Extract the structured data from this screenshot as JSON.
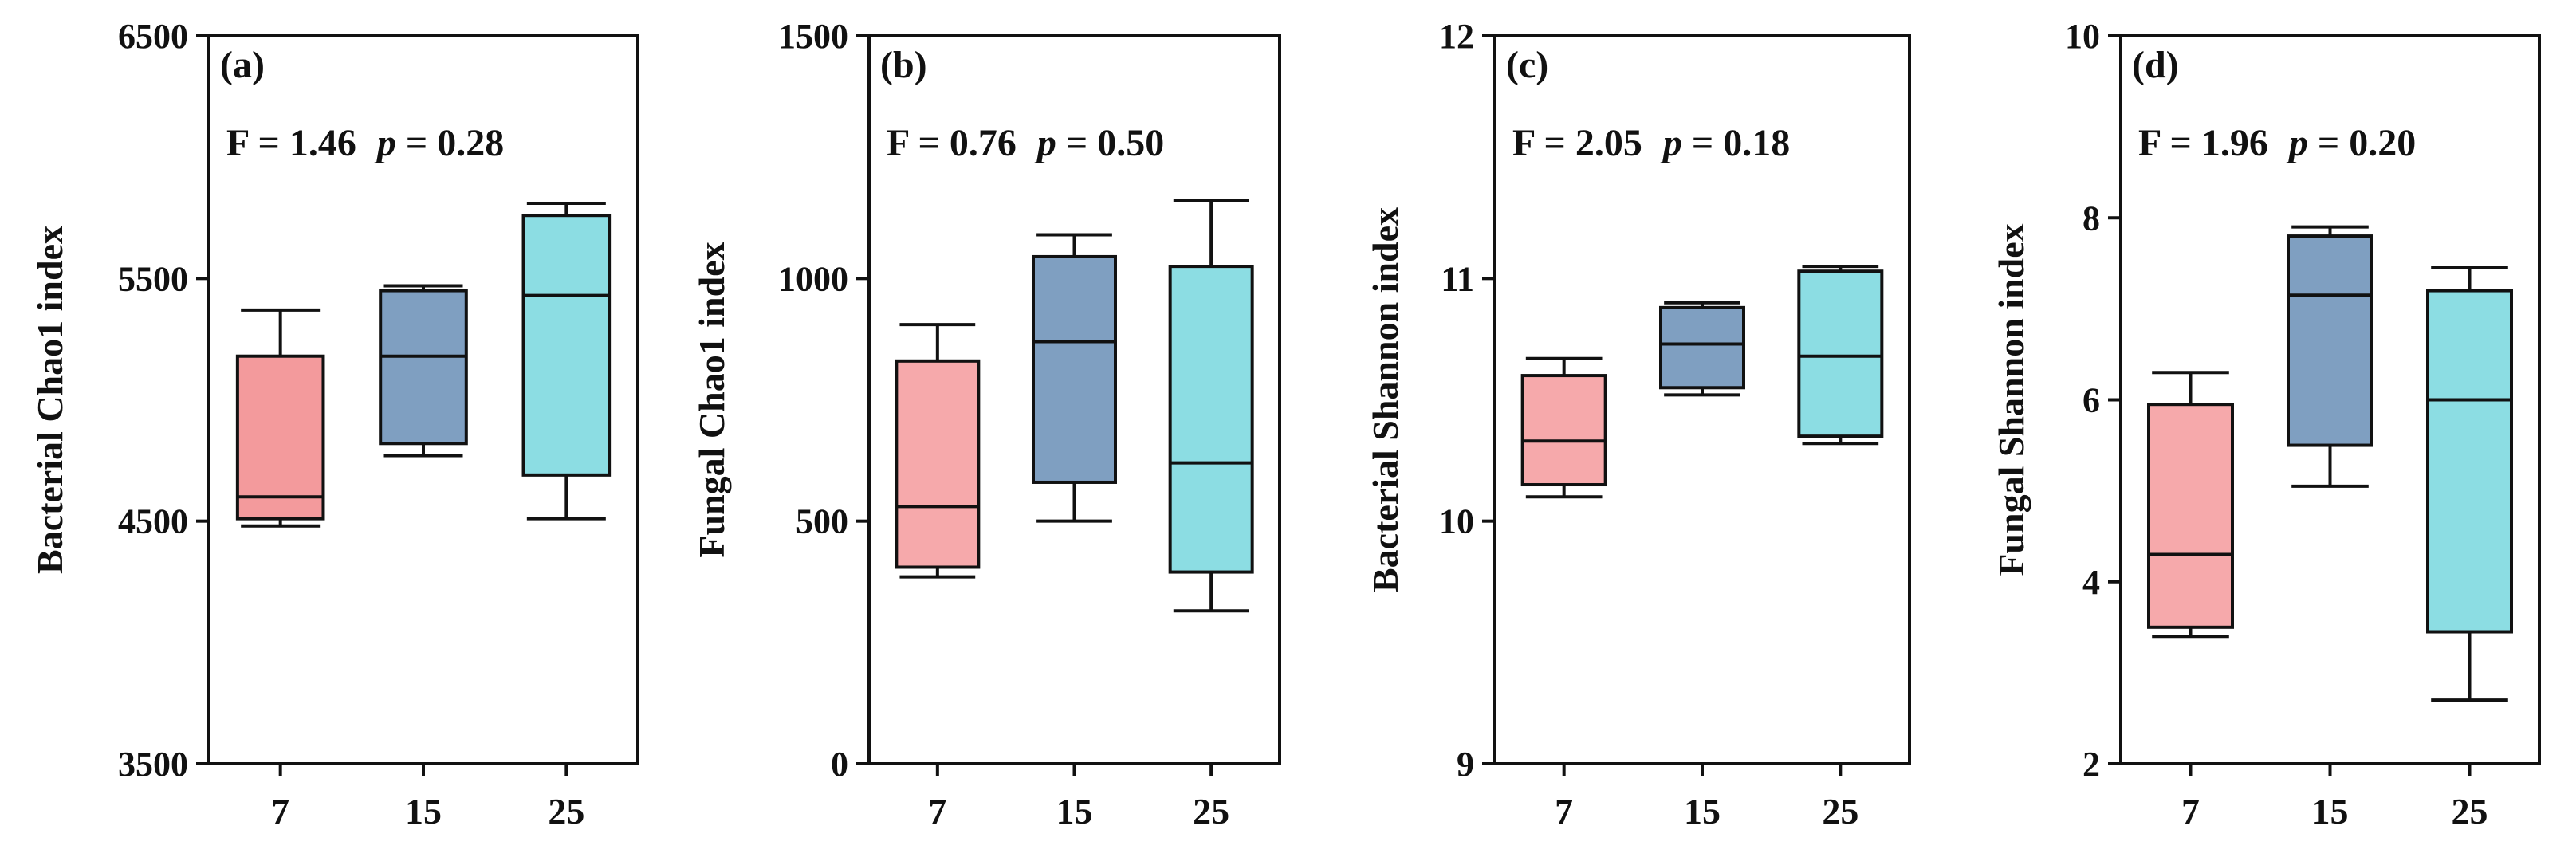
{
  "chart_data": [
    {
      "type": "box",
      "panel_label": "(a)",
      "ylabel": "Bacterial Chao1 index",
      "ylim": [
        3500,
        6500
      ],
      "yticks": [
        3500,
        4500,
        5500,
        6500
      ],
      "categories": [
        "7",
        "15",
        "25"
      ],
      "stat_f": "F = 1.46",
      "stat_p_symbol": "p",
      "stat_p_value": "= 0.28",
      "boxes": [
        {
          "min": 4480,
          "q1": 4510,
          "median": 4600,
          "q3": 5180,
          "max": 5370
        },
        {
          "min": 4770,
          "q1": 4820,
          "median": 5180,
          "q3": 5450,
          "max": 5470
        },
        {
          "min": 4510,
          "q1": 4690,
          "median": 5430,
          "q3": 5760,
          "max": 5810
        }
      ]
    },
    {
      "type": "box",
      "panel_label": "(b)",
      "ylabel": "Fungal Chao1 index",
      "ylim": [
        0,
        1500
      ],
      "yticks": [
        0,
        500,
        1000,
        1500
      ],
      "categories": [
        "7",
        "15",
        "25"
      ],
      "stat_f": "F = 0.76",
      "stat_p_symbol": "p",
      "stat_p_value": "= 0.50",
      "boxes": [
        {
          "min": 385,
          "q1": 405,
          "median": 530,
          "q3": 830,
          "max": 905
        },
        {
          "min": 500,
          "q1": 580,
          "median": 870,
          "q3": 1045,
          "max": 1090
        },
        {
          "min": 315,
          "q1": 395,
          "median": 620,
          "q3": 1025,
          "max": 1160
        }
      ]
    },
    {
      "type": "box",
      "panel_label": "(c)",
      "ylabel": "Bacterial Shannon index",
      "ylim": [
        9,
        12
      ],
      "yticks": [
        9,
        10,
        11,
        12
      ],
      "categories": [
        "7",
        "15",
        "25"
      ],
      "stat_f": "F = 2.05",
      "stat_p_symbol": "p",
      "stat_p_value": "= 0.18",
      "boxes": [
        {
          "min": 10.1,
          "q1": 10.15,
          "median": 10.33,
          "q3": 10.6,
          "max": 10.67
        },
        {
          "min": 10.52,
          "q1": 10.55,
          "median": 10.73,
          "q3": 10.88,
          "max": 10.9
        },
        {
          "min": 10.32,
          "q1": 10.35,
          "median": 10.68,
          "q3": 11.03,
          "max": 11.05
        }
      ]
    },
    {
      "type": "box",
      "panel_label": "(d)",
      "ylabel": "Fungal Shannon index",
      "ylim": [
        2,
        10
      ],
      "yticks": [
        2,
        4,
        6,
        8,
        10
      ],
      "categories": [
        "7",
        "15",
        "25"
      ],
      "stat_f": "F = 1.96",
      "stat_p_symbol": "p",
      "stat_p_value": "= 0.20",
      "boxes": [
        {
          "min": 3.4,
          "q1": 3.5,
          "median": 4.3,
          "q3": 5.95,
          "max": 6.3
        },
        {
          "min": 5.05,
          "q1": 5.5,
          "median": 7.15,
          "q3": 7.8,
          "max": 7.9
        },
        {
          "min": 2.7,
          "q1": 3.45,
          "median": 6.0,
          "q3": 7.2,
          "max": 7.45
        }
      ]
    }
  ],
  "colors": {
    "group_7": "#f6a9ab",
    "group_15": "#7f9fc1",
    "group_25": "#8cdde3",
    "group_7_a": "#f39a9c",
    "axis": "#111111"
  }
}
